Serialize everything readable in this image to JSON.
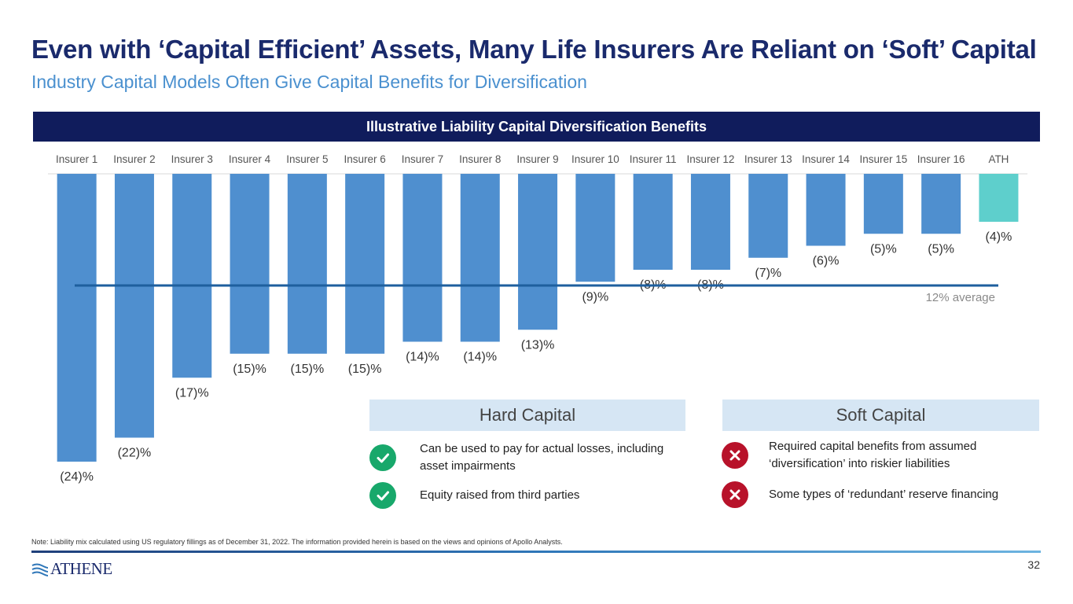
{
  "title": "Even with ‘Capital Efficient’ Assets, Many Life Insurers Are Reliant on ‘Soft’ Capital",
  "subtitle": "Industry Capital Models Often Give Capital Benefits for Diversification",
  "banner": "Illustrative Liability Capital Diversification Benefits",
  "colors": {
    "bar": "#4f8fcf",
    "highlight": "#5ecfcc",
    "average_line": "#1e5f9e",
    "banner": "#101c5c"
  },
  "chart_data": {
    "type": "bar",
    "title": "Illustrative Liability Capital Diversification Benefits",
    "categories": [
      "Insurer 1",
      "Insurer 2",
      "Insurer 3",
      "Insurer 4",
      "Insurer 5",
      "Insurer 6",
      "Insurer 7",
      "Insurer 8",
      "Insurer 9",
      "Insurer 10",
      "Insurer 11",
      "Insurer 12",
      "Insurer 13",
      "Insurer 14",
      "Insurer 15",
      "Insurer 16",
      "ATH"
    ],
    "values": [
      -24,
      -22,
      -17,
      -15,
      -15,
      -15,
      -14,
      -14,
      -13,
      -9,
      -8,
      -8,
      -7,
      -6,
      -5,
      -5,
      -4
    ],
    "labels": [
      "(24)%",
      "(22)%",
      "(17)%",
      "(15)%",
      "(15)%",
      "(15)%",
      "(14)%",
      "(14)%",
      "(13)%",
      "(9)%",
      "(8)%",
      "(8)%",
      "(7)%",
      "(6)%",
      "(5)%",
      "(5)%",
      "(4)%"
    ],
    "highlight_index": 16,
    "average": {
      "value": -12,
      "label": "12% average"
    },
    "ylim": [
      -24,
      0
    ],
    "xlabel": "",
    "ylabel": ""
  },
  "hard_capital": {
    "title": "Hard Capital",
    "items": [
      "Can be used to pay for actual losses, including asset impairments",
      "Equity raised from third parties"
    ]
  },
  "soft_capital": {
    "title": "Soft Capital",
    "items": [
      "Required capital benefits from assumed ‘diversification’ into riskier liabilities",
      "Some types of ‘redundant’ reserve financing"
    ]
  },
  "note": "Note: Liability mix calculated using US regulatory fillings as of December 31, 2022. The information provided herein is based on the views and opinions of Apollo Analysts.",
  "logo_text": "ATHENE",
  "page_number": "32"
}
